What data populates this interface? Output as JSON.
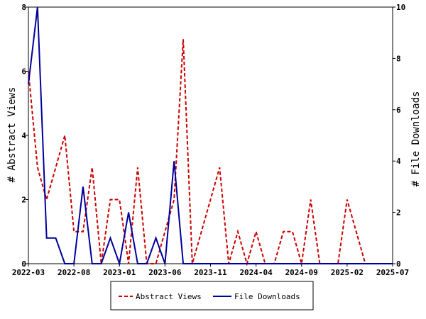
{
  "chart_data": {
    "type": "line",
    "x": [
      "2022-03",
      "2022-04",
      "2022-05",
      "2022-06",
      "2022-07",
      "2022-08",
      "2022-09",
      "2022-10",
      "2022-11",
      "2022-12",
      "2023-01",
      "2023-02",
      "2023-03",
      "2023-04",
      "2023-05",
      "2023-06",
      "2023-07",
      "2023-08",
      "2023-09",
      "2023-10",
      "2023-11",
      "2023-12",
      "2024-01",
      "2024-02",
      "2024-03",
      "2024-04",
      "2024-05",
      "2024-06",
      "2024-07",
      "2024-08",
      "2024-09",
      "2024-10",
      "2024-11",
      "2024-12",
      "2025-01",
      "2025-02",
      "2025-03",
      "2025-04",
      "2025-05",
      "2025-06",
      "2025-07"
    ],
    "series": [
      {
        "name": "Abstract Views",
        "axis": "left",
        "color": "#cc0000",
        "dash": "dashed",
        "values": [
          6,
          3,
          2,
          3,
          4,
          1,
          1,
          3,
          0,
          2,
          2,
          0,
          3,
          0,
          0,
          1,
          2,
          7,
          0,
          1,
          2,
          3,
          0,
          1,
          0,
          1,
          0,
          0,
          1,
          1,
          0,
          2,
          0,
          0,
          0,
          2,
          1,
          0,
          0,
          0,
          0
        ]
      },
      {
        "name": "File Downloads",
        "axis": "right",
        "color": "#000099",
        "dash": "solid",
        "values": [
          7,
          10,
          1,
          1,
          0,
          0,
          3,
          0,
          0,
          1,
          0,
          2,
          0,
          0,
          1,
          0,
          4,
          0,
          0,
          0,
          0,
          0,
          0,
          0,
          0,
          0,
          0,
          0,
          0,
          0,
          0,
          0,
          0,
          0,
          0,
          0,
          0,
          0,
          0,
          0,
          0
        ]
      }
    ],
    "x_ticks": [
      "2022-03",
      "2022-08",
      "2023-01",
      "2023-06",
      "2023-11",
      "2024-04",
      "2024-09",
      "2025-02",
      "2025-07"
    ],
    "ylabel_left": "# Abstract Views",
    "ylabel_right": "# File Downloads",
    "ylim_left": [
      0,
      8
    ],
    "yticks_left": [
      0,
      2,
      4,
      6,
      8
    ],
    "ylim_right": [
      0,
      10
    ],
    "yticks_right": [
      0,
      2,
      4,
      6,
      8,
      10
    ],
    "legend": [
      "Abstract Views",
      "File Downloads"
    ],
    "legend_position": "bottom-center",
    "grid": false
  }
}
